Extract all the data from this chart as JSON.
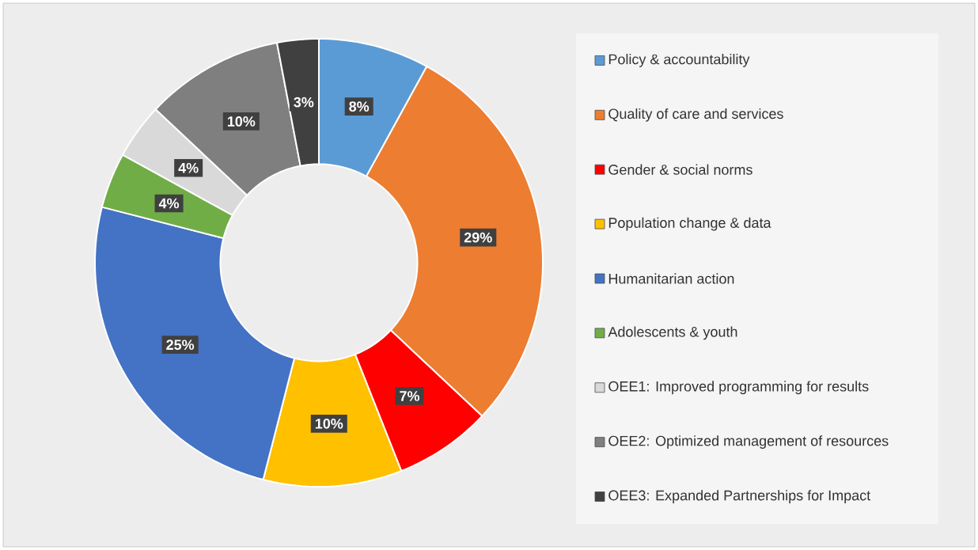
{
  "chart_data": {
    "type": "donut",
    "categories": [
      "Policy & accountability",
      "Quality of care and services",
      "Gender & social norms",
      "Population change & data",
      "Humanitarian action",
      "Adolescents & youth",
      "OEE1: Improved programming for results",
      "OEE2: Optimized management of resources",
      "OEE3: Expanded Partnerships for Impact"
    ],
    "values": [
      8,
      29,
      7,
      10,
      25,
      4,
      4,
      10,
      3
    ],
    "value_labels": [
      "8%",
      "29%",
      "7%",
      "10%",
      "25%",
      "4%",
      "4%",
      "10%",
      "3%"
    ],
    "colors": [
      "#5b9bd5",
      "#ed7d31",
      "#ff0000",
      "#ffc000",
      "#4472c4",
      "#70ad47",
      "#d9d9d9",
      "#7f7f7f",
      "#404040"
    ],
    "legend": "right"
  }
}
